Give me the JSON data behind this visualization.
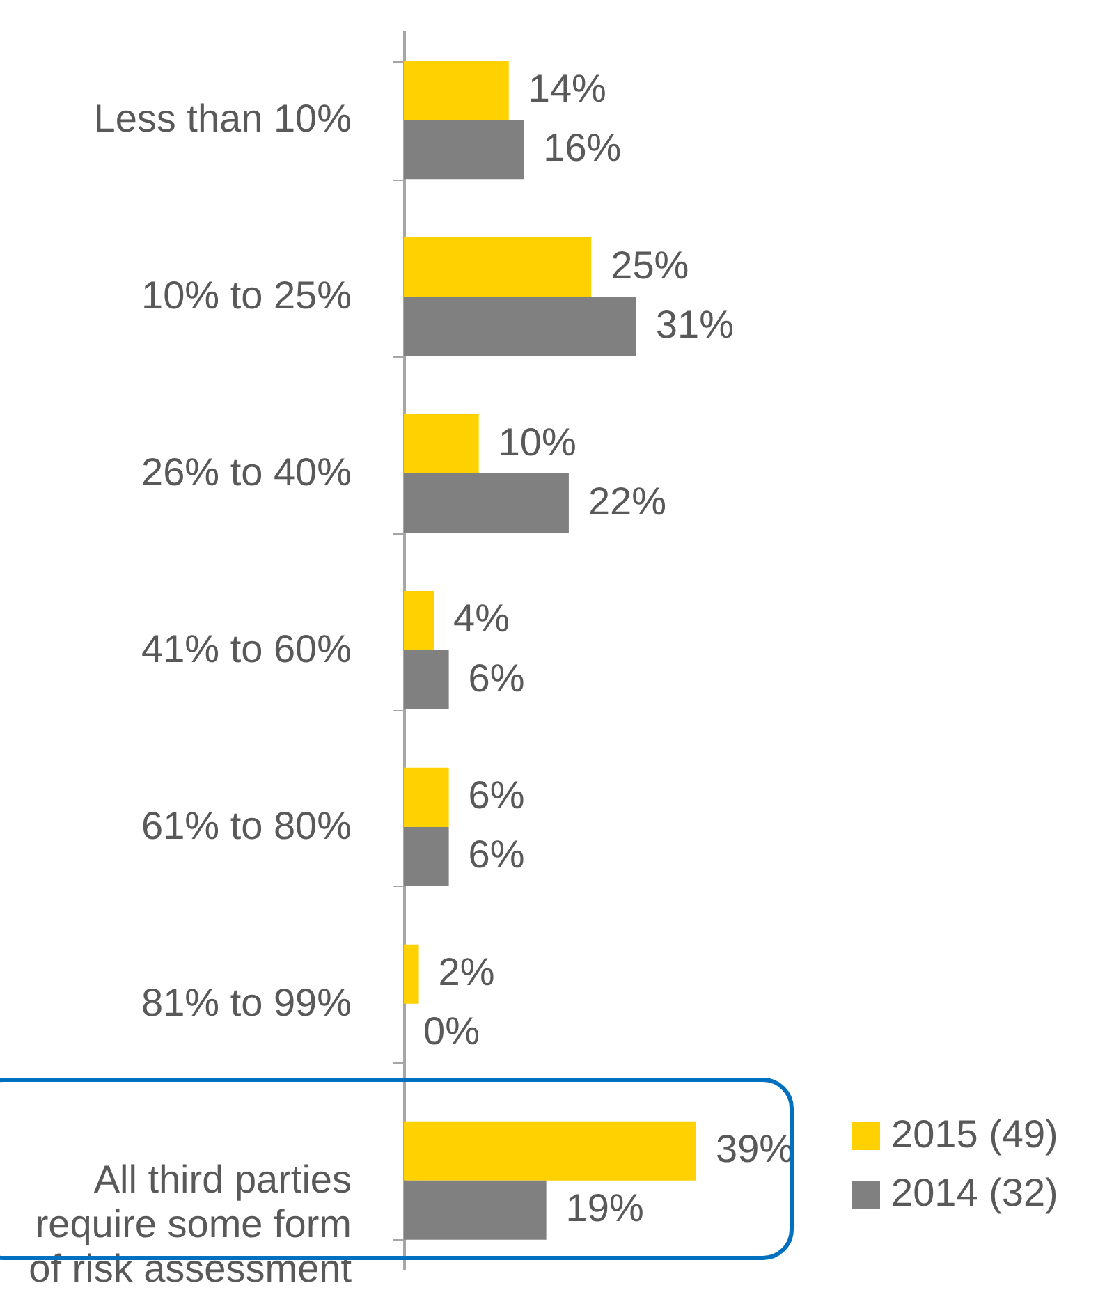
{
  "chart_data": {
    "type": "bar",
    "orientation": "horizontal",
    "categories": [
      "Less than 10%",
      "10% to 25%",
      "26% to 40%",
      "41% to 60%",
      "61% to 80%",
      "81% to 99%",
      "All third parties require some form of risk assessment"
    ],
    "series": [
      {
        "name": "2015 (49)",
        "color": "#ffd100",
        "values": [
          14,
          25,
          10,
          4,
          6,
          2,
          39
        ],
        "value_labels": [
          "14%",
          "25%",
          "10%",
          "4%",
          "6%",
          "2%",
          "39%"
        ]
      },
      {
        "name": "2014 (32)",
        "color": "#808080",
        "values": [
          16,
          31,
          22,
          6,
          6,
          0,
          19
        ],
        "value_labels": [
          "16%",
          "31%",
          "22%",
          "6%",
          "6%",
          "0%",
          "19%"
        ]
      }
    ],
    "legend": "bottom right"
  }
}
